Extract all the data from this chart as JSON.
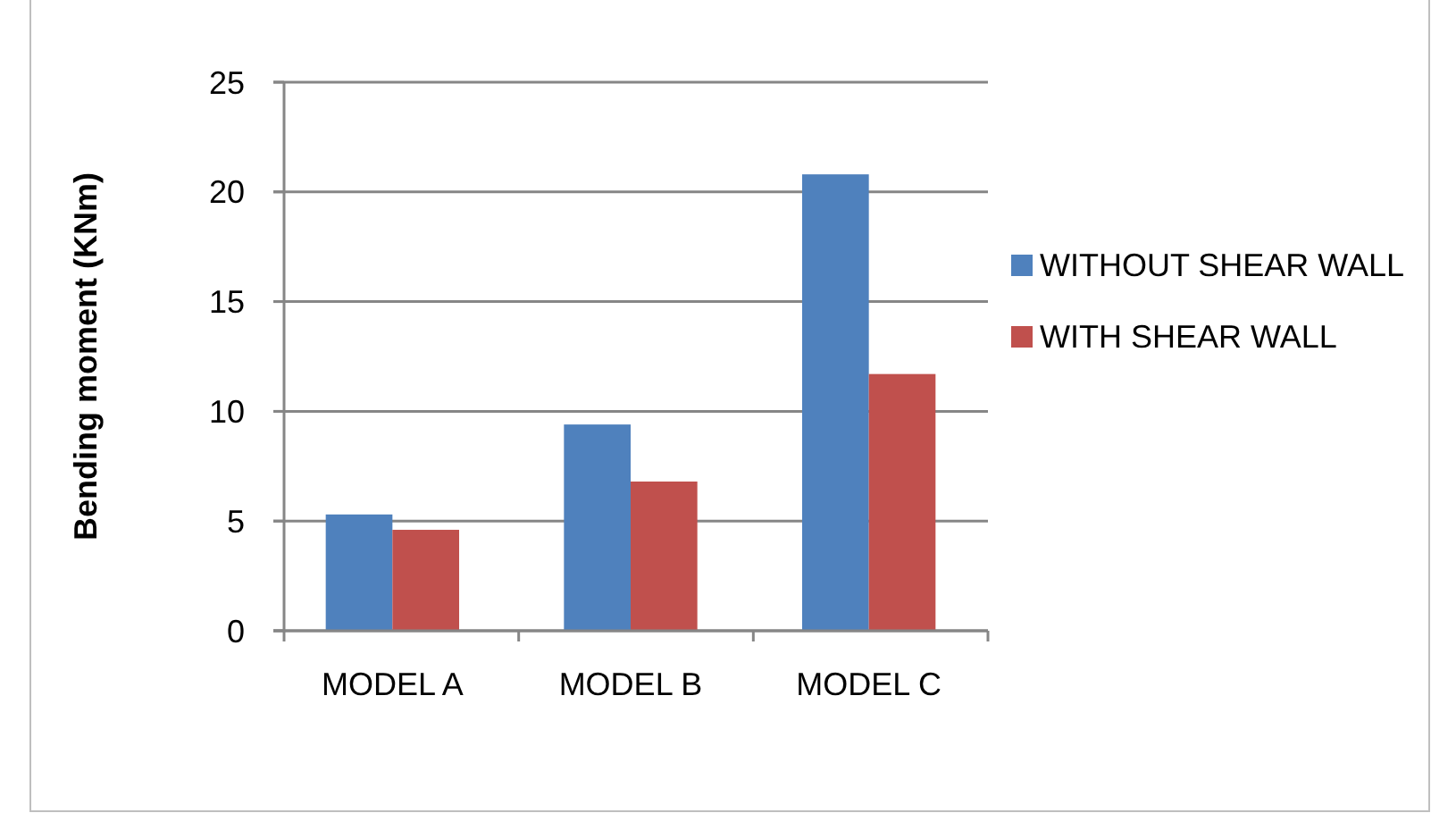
{
  "chart_data": {
    "type": "bar",
    "ylabel": "Bending moment (KNm)",
    "categories": [
      "MODEL A",
      "MODEL B",
      "MODEL C"
    ],
    "series": [
      {
        "name": "WITHOUT SHEAR WALL",
        "color": "#4f81bd",
        "values": [
          5.3,
          9.4,
          20.8
        ]
      },
      {
        "name": "WITH SHEAR WALL",
        "color": "#c0504d",
        "values": [
          4.6,
          6.8,
          11.7
        ]
      }
    ],
    "ylim": [
      0,
      25
    ],
    "yticks": [
      0,
      5,
      10,
      15,
      20,
      25
    ],
    "grid": "y",
    "legend": "right"
  }
}
